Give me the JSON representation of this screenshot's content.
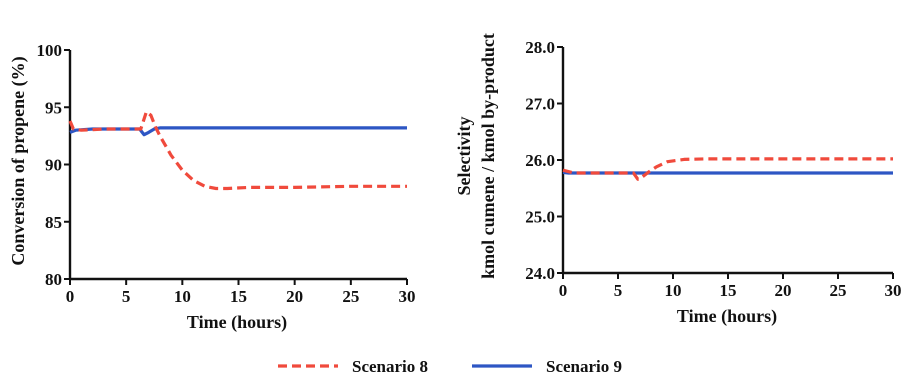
{
  "colors": {
    "scenario8": "#f04a3c",
    "scenario9": "#2d56c4"
  },
  "legend": {
    "placement": "bottom-center",
    "items": [
      {
        "label": "Scenario 8",
        "color": "#f04a3c",
        "dashed": true
      },
      {
        "label": "Scenario 9",
        "color": "#2d56c4",
        "dashed": false
      }
    ]
  },
  "chart_data": [
    {
      "type": "line",
      "title": "",
      "xlabel": "Time (hours)",
      "ylabel": "Conversion of propene (%)",
      "xlim": [
        0,
        30
      ],
      "ylim": [
        80,
        100
      ],
      "xticks": [
        "0",
        "5",
        "10",
        "15",
        "20",
        "25",
        "30"
      ],
      "yticks": [
        "80",
        "85",
        "90",
        "95",
        "100"
      ],
      "grid": false,
      "series": [
        {
          "name": "Scenario 8",
          "style": "dashed",
          "color": "#f04a3c",
          "x": [
            0,
            0.3,
            1,
            3,
            5,
            6.3,
            6.8,
            7.2,
            7.6,
            8,
            9,
            10,
            11,
            12,
            13,
            14,
            16,
            20,
            25,
            30
          ],
          "y": [
            93.8,
            93.1,
            93.0,
            93.1,
            93.1,
            93.1,
            94.6,
            94.3,
            93.3,
            92.5,
            90.8,
            89.5,
            88.6,
            88.1,
            87.9,
            87.9,
            88.0,
            88.0,
            88.1,
            88.1
          ]
        },
        {
          "name": "Scenario 9",
          "style": "solid",
          "color": "#2d56c4",
          "x": [
            0,
            0.5,
            2,
            6.2,
            6.6,
            7,
            7.5,
            8,
            10,
            15,
            20,
            25,
            30
          ],
          "y": [
            92.8,
            93.0,
            93.1,
            93.1,
            92.6,
            92.8,
            93.1,
            93.2,
            93.2,
            93.2,
            93.2,
            93.2,
            93.2
          ]
        }
      ]
    },
    {
      "type": "line",
      "title": "",
      "xlabel": "Time (hours)",
      "ylabel": [
        "Selectivity",
        "kmol cumene / kmol by-product"
      ],
      "xlim": [
        0,
        30
      ],
      "ylim": [
        24.0,
        28.0
      ],
      "xticks": [
        "0",
        "5",
        "10",
        "15",
        "20",
        "25",
        "30"
      ],
      "yticks": [
        "24.0",
        "25.0",
        "26.0",
        "27.0",
        "28.0"
      ],
      "grid": false,
      "series": [
        {
          "name": "Scenario 8",
          "style": "dashed",
          "color": "#f04a3c",
          "x": [
            0,
            1,
            3,
            6,
            6.4,
            6.8,
            7.2,
            7.8,
            8.5,
            9.5,
            11,
            13,
            15,
            20,
            25,
            30
          ],
          "y": [
            25.82,
            25.77,
            25.77,
            25.77,
            25.77,
            25.66,
            25.7,
            25.79,
            25.88,
            25.97,
            26.01,
            26.02,
            26.02,
            26.02,
            26.02,
            26.02
          ]
        },
        {
          "name": "Scenario 9",
          "style": "solid",
          "color": "#2d56c4",
          "x": [
            0,
            0.5,
            5,
            10,
            15,
            20,
            25,
            30
          ],
          "y": [
            25.78,
            25.77,
            25.77,
            25.77,
            25.77,
            25.77,
            25.77,
            25.77
          ]
        }
      ]
    }
  ]
}
